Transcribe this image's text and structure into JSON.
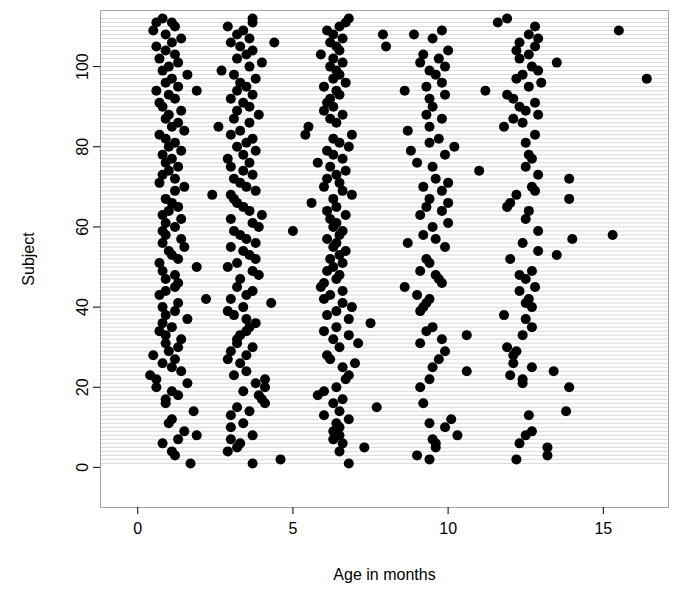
{
  "chart_data": {
    "type": "scatter",
    "xlabel": "Age in months",
    "ylabel": "Subject",
    "xlim": [
      -1.2,
      17.1
    ],
    "xticks": [
      0,
      5,
      10,
      15
    ],
    "ylim": [
      -10,
      114
    ],
    "yticks": [
      0,
      20,
      40,
      60,
      80,
      100
    ],
    "color": "#000000",
    "marker": "circle",
    "grid": true,
    "x": [
      1.7,
      3.7,
      6.8,
      4.6,
      9.4,
      12.2,
      1.2,
      9.0,
      13.2,
      1.1,
      2.9,
      6.5,
      3.2,
      7.3,
      9.6,
      13.2,
      0.8,
      3.3,
      6.6,
      9.6,
      12.3,
      1.3,
      3.0,
      6.3,
      9.5,
      1.9,
      3.7,
      6.5,
      10.3,
      12.5,
      1.5,
      6.3,
      12.7,
      3.0,
      6.5,
      9.9,
      1.0,
      3.4,
      6.4,
      9.4,
      1.1,
      6.8,
      10.1,
      3.0,
      6.0,
      12.6,
      1.8,
      3.6,
      6.5,
      13.8,
      3.2,
      7.7,
      0.9,
      4.1,
      6.3,
      9.2,
      0.9,
      4.0,
      6.6,
      1.3,
      3.9,
      5.8,
      1.1,
      3.4,
      6.0,
      0.6,
      4.1,
      6.4,
      9.1,
      13.9,
      1.6,
      3.8,
      12.4,
      0.6,
      4.1,
      6.7,
      9.4,
      12.4,
      0.4,
      3.1,
      6.8,
      12.0,
      1.4,
      3.5,
      10.6,
      13.4,
      1.1,
      6.6,
      9.5,
      12.7,
      0.8,
      3.3,
      7.0,
      12.1,
      1.2,
      2.9,
      6.2,
      9.7,
      0.5,
      3.5,
      6.1,
      12.1,
      1.0,
      3.0,
      9.9,
      12.2,
      1.3,
      3.7,
      6.5,
      11.9,
      0.9,
      3.2,
      7.1,
      9.1,
      1.4,
      3.2,
      6.3,
      9.8,
      0.9,
      3.3,
      6.8,
      10.6,
      12.4,
      0.7,
      3.5,
      6.0,
      9.3,
      1.1,
      3.6,
      6.4,
      9.5,
      12.7,
      0.8,
      3.8,
      7.5,
      1.6,
      3.5,
      6.8,
      12.5,
      0.9,
      3.1,
      6.1,
      11.8,
      1.2,
      2.9,
      6.4,
      9.1,
      0.8,
      3.4,
      6.9,
      9.2,
      12.7,
      1.3,
      4.3,
      6.6,
      9.3,
      12.5,
      2.2,
      3.0,
      6.0,
      9.4,
      12.6,
      0.7,
      3.5,
      6.2,
      9.0,
      0.9,
      3.7,
      6.6,
      12.3,
      1.2,
      3.2,
      5.9,
      8.6,
      12.8,
      1.3,
      6.0,
      9.8,
      0.9,
      3.3,
      6.4,
      9.7,
      12.5,
      1.2,
      3.9,
      6.5,
      9.6,
      12.3,
      0.8,
      3.7,
      6.1,
      9.1,
      12.7,
      1.9,
      2.9,
      6.3,
      0.7,
      3.2,
      6.6,
      9.4,
      1.3,
      3.8,
      6.2,
      9.3,
      12.0,
      1.1,
      3.6,
      6.5,
      13.5,
      1.0,
      3.4,
      6.7,
      12.9,
      1.5,
      3.0,
      6.3,
      9.9,
      0.8,
      3.8,
      6.4,
      8.7,
      12.4,
      1.4,
      3.5,
      6.1,
      9.6,
      14.0,
      0.9,
      3.3,
      6.5,
      9.2,
      15.3,
      0.8,
      3.1,
      5.0,
      6.6,
      12.9,
      1.2,
      3.9,
      6.3,
      9.5,
      0.9,
      3.7,
      6.4,
      10.0,
      1.4,
      3.0,
      6.2,
      12.5,
      0.8,
      4.0,
      6.7,
      9.1,
      1.0,
      3.6,
      6.1,
      9.8,
      12.6,
      1.3,
      3.4,
      6.4,
      9.3,
      11.9,
      1.1,
      3.2,
      5.6,
      10.0,
      12.0,
      0.9,
      3.1,
      6.3,
      9.4,
      13.9,
      2.4,
      3.0,
      6.9,
      12.2,
      1.2,
      3.8,
      6.6,
      9.8,
      12.8,
      1.5,
      3.5,
      6.0,
      9.2,
      12.7,
      0.7,
      3.3,
      6.5,
      10.0,
      1.2,
      3.1,
      6.1,
      9.6,
      13.9,
      0.8,
      3.7,
      6.4,
      12.9,
      1.0,
      3.4,
      6.7,
      11.0,
      1.3,
      3.0,
      6.2,
      9.5,
      12.5,
      0.9,
      3.6,
      5.8,
      9.0,
      1.1,
      2.9,
      6.6,
      12.7,
      0.8,
      3.4,
      6.3,
      9.9,
      12.6,
      1.4,
      3.8,
      6.1,
      8.8,
      1.0,
      3.2,
      6.8,
      10.2,
      1.2,
      3.5,
      6.5,
      9.4,
      12.5,
      0.9,
      3.7,
      6.3,
      9.7,
      0.7,
      3.0,
      5.4,
      6.9,
      12.8,
      1.5,
      3.3,
      8.7,
      1.1,
      2.6,
      5.5,
      9.4,
      11.8,
      1.3,
      3.6,
      6.4,
      12.4,
      0.9,
      3.1,
      6.2,
      9.8,
      12.1,
      1.0,
      3.9,
      6.6,
      9.3,
      12.9,
      1.4,
      3.2,
      6.0,
      12.5,
      0.8,
      3.6,
      6.3,
      9.5,
      12.3,
      0.7,
      3.4,
      6.1,
      12.8,
      1.2,
      3.0,
      6.2,
      9.4,
      12.1,
      1.0,
      3.7,
      6.5,
      9.9,
      11.9,
      0.6,
      1.9,
      3.2,
      6.4,
      8.6,
      11.2,
      1.3,
      3.5,
      6.0,
      9.3,
      12.6,
      0.9,
      3.3,
      6.7,
      9.8,
      13.0,
      1.1,
      3.8,
      6.3,
      12.2,
      16.4,
      1.6,
      3.1,
      6.5,
      9.6,
      12.4,
      0.8,
      2.7,
      6.4,
      9.4,
      12.9,
      1.0,
      3.6,
      6.2,
      9.9,
      12.7,
      1.3,
      4.0,
      6.6,
      9.1,
      13.5,
      0.7,
      3.2,
      6.3,
      9.7,
      12.3,
      1.2,
      3.5,
      5.9,
      9.2,
      12.6,
      0.9,
      3.7,
      6.5,
      10.0,
      12.2,
      0.6,
      3.3,
      6.4,
      8.0,
      12.8,
      1.1,
      3.0,
      4.4,
      6.2,
      12.3,
      1.4,
      3.6,
      6.6,
      9.5,
      12.9,
      0.9,
      3.2,
      6.3,
      7.9,
      8.9,
      12.6,
      0.5,
      3.4,
      6.1,
      9.8,
      15.5,
      1.2,
      2.9,
      6.5,
      12.8,
      0.6,
      1.1,
      3.7,
      6.7,
      11.6,
      0.8,
      3.7,
      6.8,
      11.9
    ],
    "values": [
      1,
      1,
      1,
      2,
      2,
      2,
      3,
      3,
      3,
      4,
      4,
      4,
      5,
      5,
      5,
      5,
      6,
      6,
      6,
      6,
      6,
      7,
      7,
      7,
      7,
      8,
      8,
      8,
      8,
      8,
      9,
      9,
      9,
      10,
      10,
      10,
      11,
      11,
      11,
      11,
      12,
      12,
      12,
      13,
      13,
      13,
      14,
      14,
      14,
      14,
      15,
      15,
      16,
      16,
      16,
      16,
      17,
      17,
      17,
      18,
      18,
      18,
      19,
      19,
      19,
      20,
      20,
      20,
      20,
      20,
      21,
      21,
      21,
      22,
      22,
      22,
      22,
      22,
      23,
      23,
      23,
      23,
      24,
      24,
      24,
      24,
      25,
      25,
      25,
      25,
      26,
      26,
      26,
      26,
      27,
      27,
      27,
      27,
      28,
      28,
      28,
      28,
      29,
      29,
      29,
      29,
      30,
      30,
      30,
      30,
      31,
      31,
      31,
      31,
      32,
      32,
      32,
      32,
      33,
      33,
      33,
      33,
      33,
      34,
      34,
      34,
      34,
      35,
      35,
      35,
      35,
      35,
      36,
      36,
      36,
      37,
      37,
      37,
      37,
      38,
      38,
      38,
      38,
      39,
      39,
      39,
      39,
      40,
      40,
      40,
      40,
      40,
      41,
      41,
      41,
      41,
      41,
      42,
      42,
      42,
      42,
      42,
      43,
      43,
      43,
      43,
      44,
      44,
      44,
      44,
      45,
      45,
      45,
      45,
      45,
      46,
      46,
      46,
      47,
      47,
      47,
      47,
      47,
      48,
      48,
      48,
      48,
      48,
      49,
      49,
      49,
      49,
      49,
      50,
      50,
      50,
      51,
      51,
      51,
      51,
      52,
      52,
      52,
      52,
      52,
      53,
      53,
      53,
      53,
      54,
      54,
      54,
      54,
      55,
      55,
      55,
      55,
      56,
      56,
      56,
      56,
      56,
      57,
      57,
      57,
      57,
      57,
      58,
      58,
      58,
      58,
      58,
      59,
      59,
      59,
      59,
      59,
      60,
      60,
      60,
      60,
      61,
      61,
      61,
      61,
      62,
      62,
      62,
      62,
      63,
      63,
      63,
      63,
      64,
      64,
      64,
      64,
      64,
      65,
      65,
      65,
      65,
      65,
      66,
      66,
      66,
      66,
      66,
      67,
      67,
      67,
      67,
      67,
      68,
      68,
      68,
      68,
      69,
      69,
      69,
      69,
      69,
      70,
      70,
      70,
      70,
      70,
      71,
      71,
      71,
      71,
      72,
      72,
      72,
      72,
      72,
      73,
      73,
      73,
      73,
      74,
      74,
      74,
      74,
      75,
      75,
      75,
      75,
      75,
      76,
      76,
      76,
      76,
      77,
      77,
      77,
      77,
      78,
      78,
      78,
      78,
      78,
      79,
      79,
      79,
      79,
      80,
      80,
      80,
      80,
      81,
      81,
      81,
      81,
      81,
      82,
      82,
      82,
      82,
      83,
      83,
      83,
      83,
      83,
      84,
      84,
      84,
      85,
      85,
      85,
      85,
      85,
      86,
      86,
      86,
      86,
      87,
      87,
      87,
      87,
      87,
      88,
      88,
      88,
      88,
      88,
      89,
      89,
      89,
      89,
      90,
      90,
      90,
      90,
      90,
      91,
      91,
      91,
      91,
      92,
      92,
      92,
      92,
      92,
      93,
      93,
      93,
      93,
      93,
      94,
      94,
      94,
      94,
      94,
      94,
      95,
      95,
      95,
      95,
      95,
      96,
      96,
      96,
      96,
      96,
      97,
      97,
      97,
      97,
      97,
      98,
      98,
      98,
      98,
      98,
      99,
      99,
      99,
      99,
      99,
      100,
      100,
      100,
      100,
      100,
      101,
      101,
      101,
      101,
      101,
      102,
      102,
      102,
      102,
      102,
      103,
      103,
      103,
      103,
      103,
      104,
      104,
      104,
      104,
      104,
      105,
      105,
      105,
      105,
      105,
      106,
      106,
      106,
      106,
      106,
      107,
      107,
      107,
      107,
      107,
      108,
      108,
      108,
      108,
      108,
      108,
      109,
      109,
      109,
      109,
      109,
      110,
      110,
      110,
      110,
      111,
      111,
      111,
      111,
      111,
      112,
      112,
      112,
      112
    ]
  }
}
